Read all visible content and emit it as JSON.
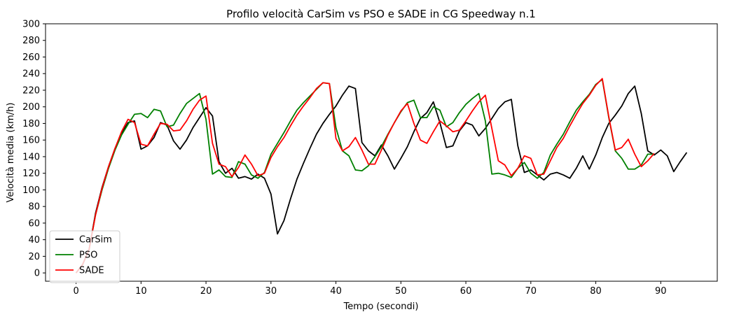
{
  "chart_data": {
    "type": "line",
    "title": "Profilo velocità CarSim vs PSO e SADE in CG Speedway n.1",
    "xlabel": "Tempo (secondi)",
    "ylabel": "Velocità media (km/h)",
    "xlim": [
      -4.7,
      98.7
    ],
    "ylim": [
      -10,
      300
    ],
    "xticks": [
      0,
      10,
      20,
      30,
      40,
      50,
      60,
      70,
      80,
      90
    ],
    "yticks": [
      0,
      20,
      40,
      60,
      80,
      100,
      120,
      140,
      160,
      180,
      200,
      220,
      240,
      260,
      280,
      300
    ],
    "grid": false,
    "legend_position": "lower-left",
    "series": [
      {
        "name": "CarSim",
        "color": "#000000",
        "x": [
          0,
          1,
          2,
          3,
          4,
          5,
          6,
          7,
          8,
          9,
          10,
          11,
          12,
          13,
          14,
          15,
          16,
          17,
          18,
          19,
          20,
          21,
          22,
          23,
          24,
          25,
          26,
          27,
          28,
          29,
          30,
          31,
          32,
          33,
          34,
          35,
          36,
          37,
          38,
          39,
          40,
          41,
          42,
          43,
          44,
          45,
          46,
          47,
          48,
          49,
          50,
          51,
          52,
          53,
          54,
          55,
          56,
          57,
          58,
          59,
          60,
          61,
          62,
          63,
          64,
          65,
          66,
          67,
          68,
          69,
          70,
          71,
          72,
          73,
          74,
          75,
          76,
          77,
          78,
          79,
          80,
          81,
          82,
          83,
          84,
          85,
          86,
          87,
          88,
          89,
          90,
          91,
          92,
          93,
          94
        ],
        "values": [
          0,
          10,
          28,
          72,
          103,
          128,
          150,
          168,
          181,
          183,
          149,
          153,
          163,
          181,
          178,
          159,
          149,
          160,
          175,
          187,
          199,
          189,
          134,
          120,
          126,
          114,
          116,
          113,
          119,
          114,
          95,
          47,
          63,
          89,
          113,
          132,
          150,
          167,
          180,
          191,
          201,
          214,
          225,
          222,
          157,
          147,
          141,
          154,
          141,
          125,
          138,
          152,
          170,
          186,
          193,
          206,
          181,
          151,
          153,
          171,
          181,
          178,
          165,
          174,
          186,
          198,
          206,
          209,
          153,
          121,
          124,
          118,
          112,
          119,
          121,
          118,
          114,
          126,
          141,
          125,
          142,
          163,
          180,
          190,
          201,
          216,
          225,
          192,
          147,
          142,
          148,
          141,
          122,
          134,
          145
        ]
      },
      {
        "name": "PSO",
        "color": "#008000",
        "x": [
          0,
          1,
          2,
          3,
          4,
          5,
          6,
          7,
          8,
          9,
          10,
          11,
          12,
          13,
          14,
          15,
          16,
          17,
          18,
          19,
          20,
          21,
          22,
          23,
          24,
          25,
          26,
          27,
          28,
          29,
          30,
          31,
          32,
          33,
          34,
          35,
          36,
          37,
          38,
          39,
          40,
          41,
          42,
          43,
          44,
          45,
          46,
          47,
          48,
          49,
          50,
          51,
          52,
          53,
          54,
          55,
          56,
          57,
          58,
          59,
          60,
          61,
          62,
          63,
          64,
          65,
          66,
          67,
          68,
          69,
          70,
          71,
          72,
          73,
          74,
          75,
          76,
          77,
          78,
          79,
          80,
          81,
          82,
          83,
          84,
          85,
          86,
          87,
          88,
          89
        ],
        "values": [
          0,
          10,
          28,
          70,
          100,
          126,
          148,
          166,
          179,
          191,
          192,
          187,
          197,
          195,
          176,
          178,
          192,
          204,
          210,
          216,
          185,
          119,
          124,
          116,
          115,
          134,
          131,
          118,
          114,
          121,
          143,
          156,
          169,
          183,
          196,
          205,
          213,
          221,
          229,
          228,
          175,
          147,
          141,
          124,
          123,
          129,
          140,
          152,
          167,
          181,
          194,
          205,
          208,
          187,
          187,
          200,
          196,
          176,
          181,
          193,
          203,
          210,
          216,
          183,
          119,
          120,
          118,
          115,
          126,
          133,
          120,
          114,
          121,
          142,
          155,
          167,
          182,
          196,
          206,
          215,
          227,
          233,
          187,
          147,
          138,
          125,
          125,
          130,
          143,
          143
        ]
      },
      {
        "name": "SADE",
        "color": "#ff0000",
        "x": [
          0,
          1,
          2,
          3,
          4,
          5,
          6,
          7,
          8,
          9,
          10,
          11,
          12,
          13,
          14,
          15,
          16,
          17,
          18,
          19,
          20,
          21,
          22,
          23,
          24,
          25,
          26,
          27,
          28,
          29,
          30,
          31,
          32,
          33,
          34,
          35,
          36,
          37,
          38,
          39,
          40,
          41,
          42,
          43,
          44,
          45,
          46,
          47,
          48,
          49,
          50,
          51,
          52,
          53,
          54,
          55,
          56,
          57,
          58,
          59,
          60,
          61,
          62,
          63,
          64,
          65,
          66,
          67,
          68,
          69,
          70,
          71,
          72,
          73,
          74,
          75,
          76,
          77,
          78,
          79,
          80,
          81,
          82,
          83,
          84,
          85,
          86,
          87,
          88,
          89
        ],
        "values": [
          0,
          10,
          28,
          70,
          102,
          128,
          150,
          170,
          185,
          181,
          155,
          153,
          167,
          180,
          179,
          171,
          172,
          183,
          197,
          208,
          213,
          156,
          131,
          128,
          116,
          127,
          142,
          131,
          117,
          120,
          139,
          152,
          163,
          177,
          190,
          201,
          211,
          222,
          229,
          228,
          162,
          147,
          152,
          163,
          148,
          131,
          131,
          148,
          166,
          181,
          195,
          204,
          180,
          160,
          156,
          170,
          183,
          177,
          170,
          172,
          183,
          195,
          206,
          214,
          174,
          135,
          130,
          117,
          126,
          141,
          138,
          118,
          119,
          135,
          151,
          162,
          177,
          191,
          204,
          214,
          226,
          234,
          188,
          148,
          151,
          161,
          143,
          128,
          135,
          144
        ]
      }
    ]
  }
}
